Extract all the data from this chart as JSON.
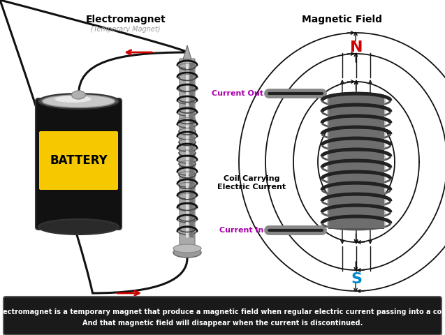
{
  "title_left": "Electromagnet",
  "subtitle_left": "(Temporary Magnet)",
  "title_right": "Magnetic Field",
  "battery_label": "BATTERY",
  "coil_label": "Coil Carrying\nElectric Current",
  "current_out_label": "Current Out",
  "current_in_label": "Current In",
  "N_label": "N",
  "S_label": "S",
  "footer_line1": "Electromagnet is a temporary magnet that produce a magnetic field when regular electric current passing into a coil.",
  "footer_line2": "And that magnetic field will disappear when the current is discontinued.",
  "bg_color": "#ffffff",
  "footer_bg": "#1a1a1a",
  "footer_text_color": "#ffffff",
  "battery_body_color": "#111111",
  "battery_yellow_color": "#f5c800",
  "wire_color": "#111111",
  "arrow_color_red": "#cc0000",
  "arrow_color_magenta": "#aa00aa",
  "N_color": "#cc0000",
  "S_color": "#0088cc",
  "field_line_color": "#111111",
  "coil_color": "#222222",
  "nail_body": "#999999",
  "nail_highlight": "#dddddd",
  "nail_shadow": "#666666",
  "fig_width": 6.37,
  "fig_height": 4.8,
  "dpi": 100
}
